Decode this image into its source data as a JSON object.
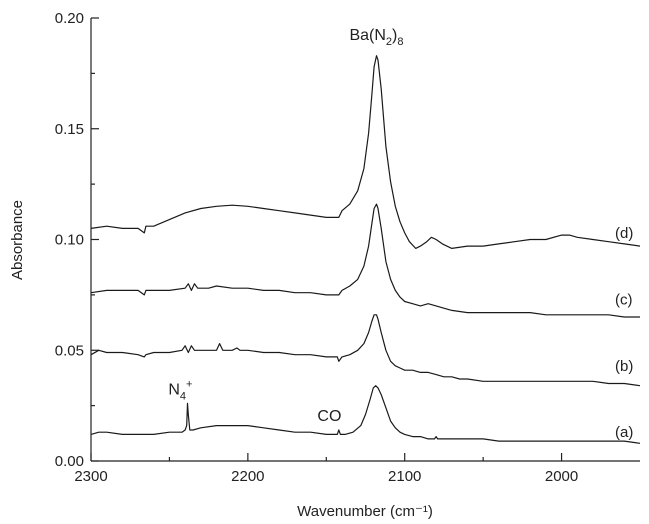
{
  "chart_data": {
    "type": "line",
    "title": "",
    "xlabel": "Wavenumber (cm⁻¹)",
    "ylabel": "Absorbance",
    "xlim": [
      2300,
      1950
    ],
    "x_reversed": true,
    "ylim": [
      0.0,
      0.2
    ],
    "x_ticks": [
      2300,
      2200,
      2100,
      2000
    ],
    "x_tick_labels": [
      "2300",
      "2200",
      "2100",
      "2000"
    ],
    "y_ticks": [
      0.0,
      0.05,
      0.1,
      0.15,
      0.2
    ],
    "y_tick_labels": [
      "0.00",
      "0.05",
      "0.10",
      "0.15",
      "0.20"
    ],
    "grid": false,
    "legend": "none",
    "annotations": [
      {
        "id": "ba",
        "x": 2118,
        "y": 0.19,
        "parts": [
          {
            "t": "Ba(N"
          },
          {
            "t": "2",
            "s": "sub"
          },
          {
            "t": ")"
          },
          {
            "t": "8",
            "s": "sub"
          }
        ]
      },
      {
        "id": "n4",
        "x": 2243,
        "y": 0.03,
        "parts": [
          {
            "t": "N"
          },
          {
            "t": "4",
            "s": "sub"
          },
          {
            "t": "+",
            "s": "sup"
          }
        ]
      },
      {
        "id": "co",
        "x": 2148,
        "y": 0.018,
        "parts": [
          {
            "t": "CO"
          }
        ]
      }
    ],
    "series": [
      {
        "name": "(d)",
        "label_y": 0.103,
        "points": [
          [
            2300,
            0.105
          ],
          [
            2290,
            0.106
          ],
          [
            2280,
            0.105
          ],
          [
            2270,
            0.105
          ],
          [
            2266,
            0.103
          ],
          [
            2265,
            0.106
          ],
          [
            2260,
            0.106
          ],
          [
            2250,
            0.109
          ],
          [
            2240,
            0.112
          ],
          [
            2230,
            0.114
          ],
          [
            2220,
            0.115
          ],
          [
            2210,
            0.1155
          ],
          [
            2200,
            0.115
          ],
          [
            2190,
            0.114
          ],
          [
            2180,
            0.113
          ],
          [
            2170,
            0.112
          ],
          [
            2160,
            0.111
          ],
          [
            2150,
            0.11
          ],
          [
            2142,
            0.11
          ],
          [
            2140,
            0.113
          ],
          [
            2135,
            0.116
          ],
          [
            2130,
            0.122
          ],
          [
            2126,
            0.132
          ],
          [
            2123,
            0.148
          ],
          [
            2121,
            0.165
          ],
          [
            2119.5,
            0.178
          ],
          [
            2118,
            0.183
          ],
          [
            2117,
            0.181
          ],
          [
            2115,
            0.168
          ],
          [
            2112,
            0.142
          ],
          [
            2109,
            0.126
          ],
          [
            2106,
            0.115
          ],
          [
            2103,
            0.108
          ],
          [
            2100,
            0.103
          ],
          [
            2097,
            0.099
          ],
          [
            2093,
            0.096
          ],
          [
            2090,
            0.097
          ],
          [
            2086,
            0.099
          ],
          [
            2083,
            0.101
          ],
          [
            2080,
            0.1
          ],
          [
            2076,
            0.098
          ],
          [
            2070,
            0.096
          ],
          [
            2060,
            0.097
          ],
          [
            2050,
            0.097
          ],
          [
            2040,
            0.098
          ],
          [
            2030,
            0.099
          ],
          [
            2020,
            0.1
          ],
          [
            2010,
            0.1
          ],
          [
            2000,
            0.102
          ],
          [
            1995,
            0.102
          ],
          [
            1990,
            0.101
          ],
          [
            1980,
            0.1
          ],
          [
            1970,
            0.099
          ],
          [
            1960,
            0.098
          ],
          [
            1950,
            0.097
          ]
        ]
      },
      {
        "name": "(c)",
        "label_y": 0.073,
        "points": [
          [
            2300,
            0.076
          ],
          [
            2290,
            0.077
          ],
          [
            2280,
            0.077
          ],
          [
            2270,
            0.077
          ],
          [
            2266,
            0.075
          ],
          [
            2265,
            0.077
          ],
          [
            2260,
            0.077
          ],
          [
            2250,
            0.077
          ],
          [
            2240,
            0.078
          ],
          [
            2238,
            0.08
          ],
          [
            2236,
            0.077
          ],
          [
            2234,
            0.08
          ],
          [
            2232,
            0.078
          ],
          [
            2225,
            0.078
          ],
          [
            2220,
            0.079
          ],
          [
            2210,
            0.078
          ],
          [
            2200,
            0.078
          ],
          [
            2190,
            0.077
          ],
          [
            2180,
            0.077
          ],
          [
            2170,
            0.076
          ],
          [
            2160,
            0.076
          ],
          [
            2150,
            0.075
          ],
          [
            2142,
            0.075
          ],
          [
            2140,
            0.077
          ],
          [
            2135,
            0.079
          ],
          [
            2130,
            0.082
          ],
          [
            2126,
            0.088
          ],
          [
            2123,
            0.097
          ],
          [
            2121,
            0.107
          ],
          [
            2119.5,
            0.114
          ],
          [
            2118,
            0.116
          ],
          [
            2117,
            0.114
          ],
          [
            2115,
            0.105
          ],
          [
            2112,
            0.09
          ],
          [
            2109,
            0.082
          ],
          [
            2106,
            0.077
          ],
          [
            2103,
            0.074
          ],
          [
            2100,
            0.072
          ],
          [
            2095,
            0.071
          ],
          [
            2090,
            0.07
          ],
          [
            2085,
            0.071
          ],
          [
            2080,
            0.07
          ],
          [
            2075,
            0.069
          ],
          [
            2070,
            0.068
          ],
          [
            2060,
            0.067
          ],
          [
            2050,
            0.067
          ],
          [
            2040,
            0.067
          ],
          [
            2030,
            0.067
          ],
          [
            2020,
            0.067
          ],
          [
            2010,
            0.066
          ],
          [
            2000,
            0.066
          ],
          [
            1990,
            0.066
          ],
          [
            1980,
            0.066
          ],
          [
            1970,
            0.066
          ],
          [
            1960,
            0.065
          ],
          [
            1950,
            0.065
          ]
        ]
      },
      {
        "name": "(b)",
        "label_y": 0.043,
        "points": [
          [
            2300,
            0.048
          ],
          [
            2295,
            0.05
          ],
          [
            2290,
            0.049
          ],
          [
            2280,
            0.049
          ],
          [
            2270,
            0.048
          ],
          [
            2266,
            0.047
          ],
          [
            2265,
            0.048
          ],
          [
            2260,
            0.049
          ],
          [
            2250,
            0.049
          ],
          [
            2242,
            0.05
          ],
          [
            2240,
            0.052
          ],
          [
            2238,
            0.049
          ],
          [
            2236,
            0.052
          ],
          [
            2234,
            0.05
          ],
          [
            2230,
            0.05
          ],
          [
            2220,
            0.05
          ],
          [
            2218,
            0.053
          ],
          [
            2216,
            0.05
          ],
          [
            2210,
            0.05
          ],
          [
            2207,
            0.051
          ],
          [
            2205,
            0.05
          ],
          [
            2200,
            0.05
          ],
          [
            2190,
            0.049
          ],
          [
            2180,
            0.049
          ],
          [
            2170,
            0.048
          ],
          [
            2160,
            0.048
          ],
          [
            2150,
            0.047
          ],
          [
            2143,
            0.047
          ],
          [
            2142,
            0.045
          ],
          [
            2140,
            0.047
          ],
          [
            2135,
            0.048
          ],
          [
            2130,
            0.05
          ],
          [
            2126,
            0.053
          ],
          [
            2123,
            0.058
          ],
          [
            2121,
            0.063
          ],
          [
            2119.5,
            0.066
          ],
          [
            2118,
            0.066
          ],
          [
            2117,
            0.064
          ],
          [
            2115,
            0.058
          ],
          [
            2112,
            0.05
          ],
          [
            2109,
            0.045
          ],
          [
            2106,
            0.043
          ],
          [
            2103,
            0.042
          ],
          [
            2100,
            0.041
          ],
          [
            2095,
            0.041
          ],
          [
            2090,
            0.04
          ],
          [
            2085,
            0.04
          ],
          [
            2080,
            0.039
          ],
          [
            2075,
            0.038
          ],
          [
            2070,
            0.038
          ],
          [
            2065,
            0.037
          ],
          [
            2060,
            0.037
          ],
          [
            2050,
            0.036
          ],
          [
            2040,
            0.036
          ],
          [
            2030,
            0.036
          ],
          [
            2020,
            0.036
          ],
          [
            2010,
            0.036
          ],
          [
            2000,
            0.036
          ],
          [
            1990,
            0.036
          ],
          [
            1980,
            0.036
          ],
          [
            1970,
            0.035
          ],
          [
            1960,
            0.035
          ],
          [
            1950,
            0.034
          ]
        ]
      },
      {
        "name": "(a)",
        "label_y": 0.013,
        "points": [
          [
            2300,
            0.012
          ],
          [
            2295,
            0.013
          ],
          [
            2290,
            0.013
          ],
          [
            2280,
            0.012
          ],
          [
            2270,
            0.012
          ],
          [
            2260,
            0.012
          ],
          [
            2250,
            0.013
          ],
          [
            2242,
            0.013
          ],
          [
            2240,
            0.014
          ],
          [
            2239,
            0.016
          ],
          [
            2238.5,
            0.026
          ],
          [
            2238,
            0.021
          ],
          [
            2237,
            0.014
          ],
          [
            2235,
            0.014
          ],
          [
            2230,
            0.015
          ],
          [
            2220,
            0.016
          ],
          [
            2210,
            0.016
          ],
          [
            2200,
            0.016
          ],
          [
            2190,
            0.015
          ],
          [
            2180,
            0.014
          ],
          [
            2170,
            0.013
          ],
          [
            2160,
            0.013
          ],
          [
            2150,
            0.012
          ],
          [
            2143,
            0.012
          ],
          [
            2142,
            0.014
          ],
          [
            2141,
            0.012
          ],
          [
            2138,
            0.012
          ],
          [
            2133,
            0.013
          ],
          [
            2128,
            0.016
          ],
          [
            2125,
            0.021
          ],
          [
            2122,
            0.028
          ],
          [
            2120,
            0.033
          ],
          [
            2118.5,
            0.034
          ],
          [
            2117,
            0.033
          ],
          [
            2115,
            0.03
          ],
          [
            2112,
            0.024
          ],
          [
            2109,
            0.018
          ],
          [
            2106,
            0.015
          ],
          [
            2103,
            0.013
          ],
          [
            2100,
            0.012
          ],
          [
            2095,
            0.011
          ],
          [
            2090,
            0.011
          ],
          [
            2085,
            0.01
          ],
          [
            2081,
            0.01
          ],
          [
            2080,
            0.011
          ],
          [
            2079,
            0.01
          ],
          [
            2075,
            0.01
          ],
          [
            2070,
            0.01
          ],
          [
            2060,
            0.01
          ],
          [
            2050,
            0.01
          ],
          [
            2040,
            0.009
          ],
          [
            2030,
            0.009
          ],
          [
            2020,
            0.009
          ],
          [
            2010,
            0.009
          ],
          [
            2000,
            0.009
          ],
          [
            1990,
            0.009
          ],
          [
            1980,
            0.009
          ],
          [
            1970,
            0.009
          ],
          [
            1960,
            0.009
          ],
          [
            1950,
            0.008
          ]
        ]
      }
    ]
  }
}
